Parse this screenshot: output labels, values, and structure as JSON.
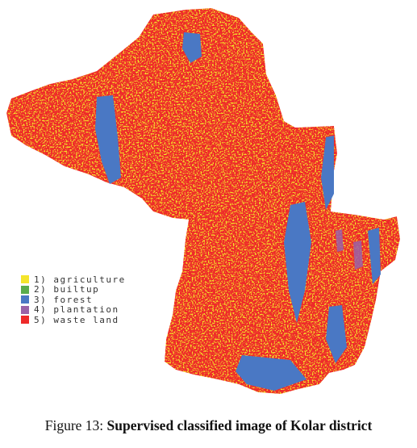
{
  "map": {
    "region": "Kolar district",
    "classes": [
      {
        "number": "1)",
        "name": "agriculture",
        "color": "#f4e52c"
      },
      {
        "number": "2)",
        "name": "builtup",
        "color": "#5aac4c"
      },
      {
        "number": "3)",
        "name": "forest",
        "color": "#4a78c4"
      },
      {
        "number": "4)",
        "name": "plantation",
        "color": "#9a62a8"
      },
      {
        "number": "5)",
        "name": "waste land",
        "color": "#ee2a2a"
      }
    ]
  },
  "legend": {
    "items": [
      "1) agriculture",
      "2) builtup",
      "3) forest",
      "4) plantation",
      "5) waste land"
    ]
  },
  "caption": {
    "label": "Figure 13:",
    "text": "Supervised classified image of Kolar district"
  }
}
